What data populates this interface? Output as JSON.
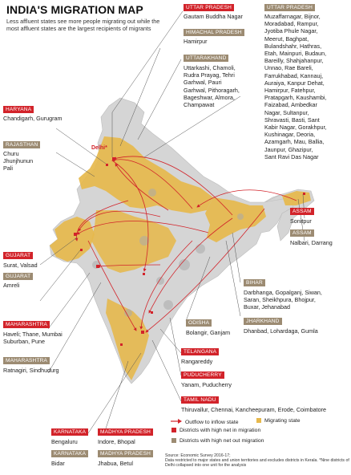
{
  "title": "INDIA'S MIGRATION MAP",
  "subtitle": "Less affluent states see more people migrating out while the most affluent states are the largest recipients of migrants",
  "delhi_label": "Delhi*",
  "states": {
    "uttar_pradesh_left": {
      "name": "UTTAR PRADESH",
      "type": "red",
      "districts": "Gautam Buddha Nagar"
    },
    "himachal_pradesh": {
      "name": "HIMACHAL PRADESH",
      "type": "brown",
      "districts": "Hamirpur"
    },
    "uttarakhand": {
      "name": "UTTARAKHAND",
      "type": "brown",
      "districts": "Uttarkashi, Chamoli,\nRudra Prayag, Tehri\nGarhwal, Pauri\nGarhwal, Pithoragarh,\nBageshwar, Almora,\nChampawat"
    },
    "uttar_pradesh_right": {
      "name": "UTTAR PRADESH",
      "type": "brown",
      "districts": "Muzaffarnagar, Bijnor,\nMoradabad, Rampur,\nJyotiba Phule Nagar,\nMeerut, Baghpat,\nBulandshahr, Hathras,\nEtah, Mainpuri, Budaun,\nBareilly, Shahjahanpur,\nUnnao, Rae Bareli,\nFarrukhabad, Kannauj,\nAuraiya, Kanpur Dehat,\nHamirpur, Fatehpur,\nPratapgarh, Kaushambi,\nFaizabad, Ambedkar\nNagar, Sultanpur,\nShravasti, Basti, Sant\nKabir Nagar, Gorakhpur,\nKushinagar, Deoria,\nAzamgarh, Mau, Ballia,\nJaunpur, Ghazipur,\nSant Ravi Das Nagar"
    },
    "haryana": {
      "name": "HARYANA",
      "type": "red",
      "districts": "Chandigarh, Gurugram"
    },
    "rajasthan": {
      "name": "RAJASTHAN",
      "type": "brown",
      "districts": "Churu\nJhunjhunun\nPali"
    },
    "assam_red": {
      "name": "ASSAM",
      "type": "red",
      "districts": "Sonitpur"
    },
    "assam_brown": {
      "name": "ASSAM",
      "type": "brown",
      "districts": "Nalbari, Darrang"
    },
    "gujarat_red": {
      "name": "GUJARAT",
      "type": "red",
      "districts": "Surat, Valsad"
    },
    "gujarat_brown": {
      "name": "GUJARAT",
      "type": "brown",
      "districts": "Amreli"
    },
    "bihar": {
      "name": "BIHAR",
      "type": "brown",
      "districts": "Darbhanga, Gopalganj, Siwan,\nSaran, Sheikhpura, Bhojpur,\nBuxar, Jehanabad"
    },
    "jharkhand": {
      "name": "JHARKHAND",
      "type": "brown",
      "districts": "Dhanbad, Lohardaga, Gumla"
    },
    "odisha": {
      "name": "ODISHA",
      "type": "brown",
      "districts": "Bolangir, Ganjam"
    },
    "maharashtra_red": {
      "name": "MAHARASHTRA",
      "type": "red",
      "districts": "Haveli; Thane, Mumbai\nSuburban, Pune"
    },
    "maharashtra_brown": {
      "name": "MAHARASHTRA",
      "type": "brown",
      "districts": "Ratnagiri, Sindhudurg"
    },
    "telangana": {
      "name": "TELANGANA",
      "type": "red",
      "districts": "Rangareddy"
    },
    "puducherry": {
      "name": "PUDUCHERRY",
      "type": "red",
      "districts": "Yanam, Puducherry"
    },
    "tamil_nadu": {
      "name": "TAMIL NADU",
      "type": "red",
      "districts": "Thiruvallur, Chennai, Kancheepuram, Erode, Coimbatore"
    },
    "karnataka_red": {
      "name": "KARNATAKA",
      "type": "red",
      "districts": "Bengaluru"
    },
    "karnataka_brown": {
      "name": "KARNATAKA",
      "type": "brown",
      "districts": "Bidar"
    },
    "madhya_pradesh_red": {
      "name": "MADHYA PRADESH",
      "type": "red",
      "districts": "Indore, Bhopal"
    },
    "madhya_pradesh_brown": {
      "name": "MADHYA PRADESH",
      "type": "brown",
      "districts": "Jhabua, Betul"
    }
  },
  "legend": {
    "arrow": "Outflow to inflow state",
    "migrating": "Migrating state",
    "inflow": "Districts with high net in migration",
    "outflow": "Districts with high net out migration"
  },
  "source": "Source: Economic Survey 2016-17;\nData restricted to major states and union territories and excludes districts in Kerala. *Nine districts of Delhi collapsed into one unit for the analysis",
  "colors": {
    "red": "#d2232a",
    "brown": "#9c8b72",
    "migrating": "#e6b84c",
    "land": "#d9d9d9"
  }
}
